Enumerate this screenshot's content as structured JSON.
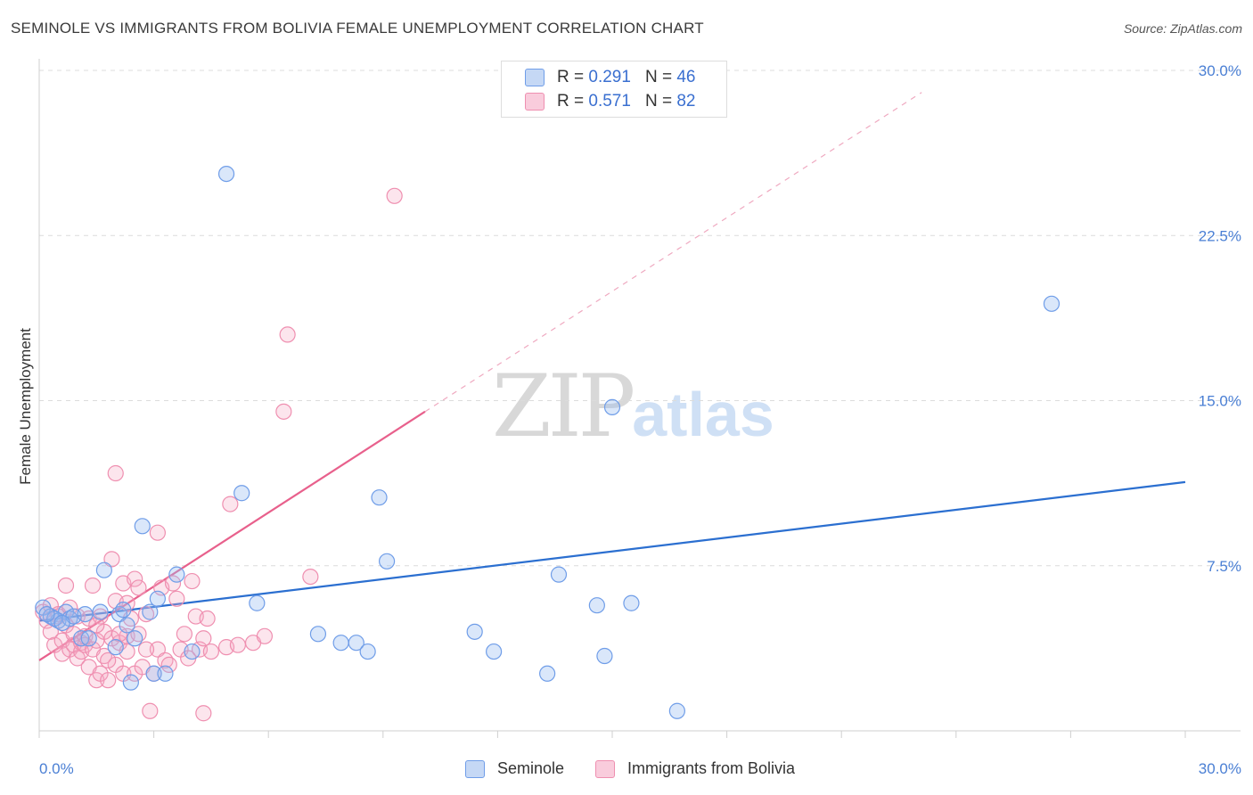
{
  "header": {
    "title": "SEMINOLE VS IMMIGRANTS FROM BOLIVIA FEMALE UNEMPLOYMENT CORRELATION CHART",
    "source": "Source: ZipAtlas.com"
  },
  "watermark": {
    "zip": "ZIP",
    "atlas": "atlas"
  },
  "legend": {
    "seminole": {
      "r_label": "R =",
      "r_value": "0.291",
      "n_label": "N =",
      "n_value": "46"
    },
    "bolivia": {
      "r_label": "R =",
      "r_value": "0.571",
      "n_label": "N =",
      "n_value": "82"
    }
  },
  "bottom_legend": {
    "seminole": "Seminole",
    "bolivia": "Immigrants from Bolivia"
  },
  "chart_data": {
    "type": "scatter",
    "title": "SEMINOLE VS IMMIGRANTS FROM BOLIVIA FEMALE UNEMPLOYMENT CORRELATION CHART",
    "xlabel": "",
    "ylabel": "Female Unemployment",
    "xlim": [
      0,
      30
    ],
    "ylim": [
      0,
      30
    ],
    "x_tick_labels": [
      "0.0%",
      "30.0%"
    ],
    "y_ticks": [
      7.5,
      15.0,
      22.5,
      30.0
    ],
    "y_tick_labels": [
      "7.5%",
      "15.0%",
      "22.5%",
      "30.0%"
    ],
    "colors": {
      "seminole": "#6f9de8",
      "bolivia": "#ef8fb0",
      "seminole_line": "#2b6fd0",
      "bolivia_line": "#e8608c"
    },
    "series": [
      {
        "name": "Seminole",
        "trend": {
          "x0": 0,
          "y0": 5.0,
          "x1": 30,
          "y1": 11.3
        },
        "points": [
          [
            0.1,
            5.6
          ],
          [
            0.3,
            5.2
          ],
          [
            0.5,
            5.0
          ],
          [
            0.7,
            5.4
          ],
          [
            0.8,
            5.1
          ],
          [
            0.9,
            5.2
          ],
          [
            1.1,
            4.2
          ],
          [
            1.2,
            5.3
          ],
          [
            1.3,
            4.2
          ],
          [
            1.6,
            5.4
          ],
          [
            1.7,
            7.3
          ],
          [
            2.0,
            3.8
          ],
          [
            2.1,
            5.3
          ],
          [
            2.2,
            5.5
          ],
          [
            2.3,
            4.8
          ],
          [
            2.4,
            2.2
          ],
          [
            2.5,
            4.2
          ],
          [
            2.7,
            9.3
          ],
          [
            2.9,
            5.4
          ],
          [
            3.0,
            2.6
          ],
          [
            3.1,
            6.0
          ],
          [
            3.3,
            2.6
          ],
          [
            3.6,
            7.1
          ],
          [
            4.0,
            3.6
          ],
          [
            4.9,
            25.3
          ],
          [
            5.3,
            10.8
          ],
          [
            5.7,
            5.8
          ],
          [
            7.3,
            4.4
          ],
          [
            7.9,
            4.0
          ],
          [
            8.3,
            4.0
          ],
          [
            8.6,
            3.6
          ],
          [
            8.9,
            10.6
          ],
          [
            9.1,
            7.7
          ],
          [
            11.4,
            4.5
          ],
          [
            11.9,
            3.6
          ],
          [
            13.3,
            2.6
          ],
          [
            13.6,
            7.1
          ],
          [
            14.6,
            5.7
          ],
          [
            14.8,
            3.4
          ],
          [
            15.0,
            14.7
          ],
          [
            15.5,
            5.8
          ],
          [
            16.7,
            0.9
          ],
          [
            26.5,
            19.4
          ],
          [
            0.4,
            5.1
          ],
          [
            0.6,
            4.9
          ],
          [
            0.2,
            5.3
          ]
        ]
      },
      {
        "name": "Immigrants from Bolivia",
        "trend": {
          "x0": 0,
          "y0": 3.2,
          "x1": 10.1,
          "y1": 14.5
        },
        "trend_dashed": {
          "x0": 10.1,
          "y0": 14.5,
          "x1": 23.1,
          "y1": 29.0
        },
        "points": [
          [
            0.1,
            5.4
          ],
          [
            0.2,
            5.0
          ],
          [
            0.3,
            4.5
          ],
          [
            0.3,
            5.7
          ],
          [
            0.4,
            3.9
          ],
          [
            0.5,
            5.2
          ],
          [
            0.6,
            4.1
          ],
          [
            0.6,
            3.5
          ],
          [
            0.7,
            6.6
          ],
          [
            0.7,
            4.8
          ],
          [
            0.8,
            3.7
          ],
          [
            0.9,
            3.9
          ],
          [
            0.9,
            4.4
          ],
          [
            1.0,
            3.3
          ],
          [
            1.0,
            5.2
          ],
          [
            1.1,
            4.0
          ],
          [
            1.1,
            3.6
          ],
          [
            1.2,
            4.3
          ],
          [
            1.2,
            3.9
          ],
          [
            1.3,
            2.9
          ],
          [
            1.3,
            5.1
          ],
          [
            1.4,
            3.7
          ],
          [
            1.4,
            6.6
          ],
          [
            1.5,
            2.3
          ],
          [
            1.5,
            4.1
          ],
          [
            1.6,
            2.6
          ],
          [
            1.6,
            5.2
          ],
          [
            1.7,
            4.5
          ],
          [
            1.7,
            3.4
          ],
          [
            1.8,
            2.3
          ],
          [
            1.9,
            4.2
          ],
          [
            1.9,
            7.8
          ],
          [
            2.0,
            3.0
          ],
          [
            2.0,
            5.9
          ],
          [
            2.1,
            4.0
          ],
          [
            2.2,
            2.6
          ],
          [
            2.2,
            6.7
          ],
          [
            2.3,
            5.8
          ],
          [
            2.3,
            4.3
          ],
          [
            2.4,
            5.1
          ],
          [
            2.5,
            6.9
          ],
          [
            2.5,
            2.6
          ],
          [
            2.6,
            4.4
          ],
          [
            2.7,
            2.9
          ],
          [
            2.8,
            5.3
          ],
          [
            2.9,
            0.9
          ],
          [
            3.0,
            2.6
          ],
          [
            3.1,
            3.7
          ],
          [
            3.1,
            9.0
          ],
          [
            3.2,
            6.5
          ],
          [
            3.3,
            3.2
          ],
          [
            3.4,
            3.0
          ],
          [
            3.5,
            6.7
          ],
          [
            3.6,
            6.0
          ],
          [
            3.7,
            3.7
          ],
          [
            3.8,
            4.4
          ],
          [
            3.9,
            3.3
          ],
          [
            4.0,
            6.8
          ],
          [
            4.1,
            5.2
          ],
          [
            4.2,
            3.7
          ],
          [
            4.3,
            4.2
          ],
          [
            4.4,
            5.1
          ],
          [
            4.5,
            3.6
          ],
          [
            4.9,
            3.8
          ],
          [
            5.0,
            10.3
          ],
          [
            5.2,
            3.9
          ],
          [
            5.6,
            4.0
          ],
          [
            5.9,
            4.3
          ],
          [
            6.4,
            14.5
          ],
          [
            6.5,
            18.0
          ],
          [
            7.1,
            7.0
          ],
          [
            9.3,
            24.3
          ],
          [
            4.3,
            0.8
          ],
          [
            2.0,
            11.7
          ],
          [
            2.3,
            3.6
          ],
          [
            2.6,
            6.5
          ],
          [
            0.5,
            5.3
          ],
          [
            0.8,
            5.6
          ],
          [
            1.5,
            4.8
          ],
          [
            1.8,
            3.2
          ],
          [
            2.1,
            4.4
          ],
          [
            2.8,
            3.7
          ]
        ]
      }
    ]
  }
}
